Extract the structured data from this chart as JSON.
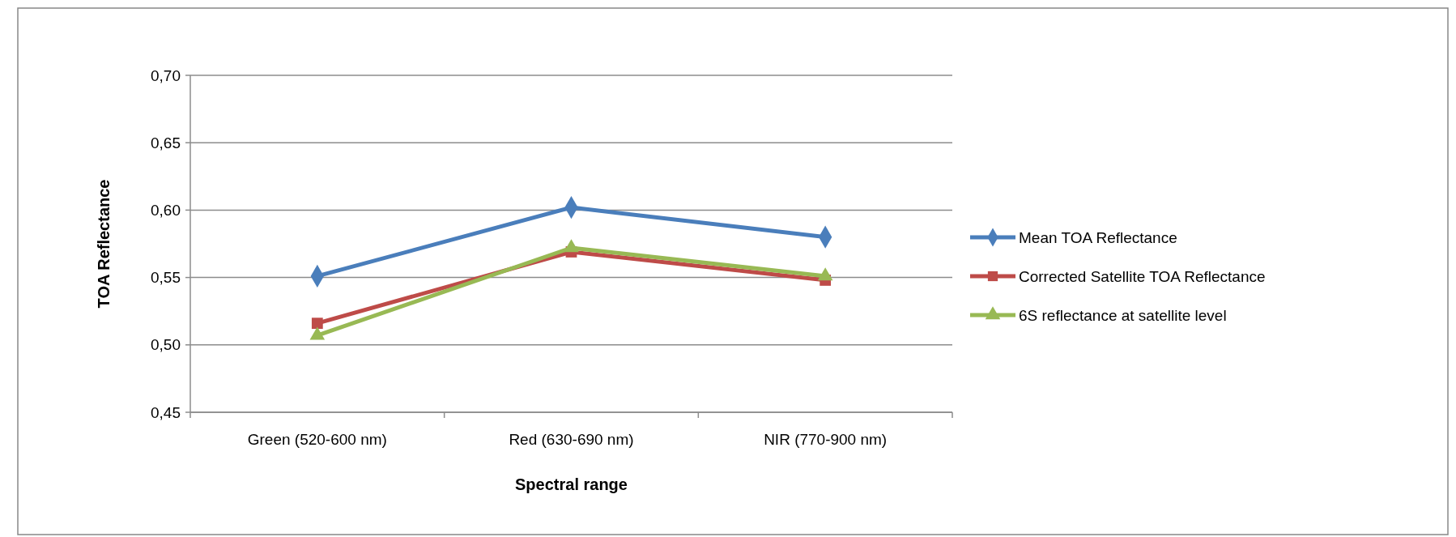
{
  "chart_data": {
    "type": "line",
    "xlabel": "Spectral range",
    "ylabel": "TOA Reflectance",
    "categories": [
      "Green (520-600 nm)",
      "Red (630-690 nm)",
      "NIR (770-900 nm)"
    ],
    "series": [
      {
        "name": "Mean TOA Reflectance",
        "color": "#4a7ebb",
        "marker": "diamond",
        "values": [
          0.551,
          0.602,
          0.58
        ]
      },
      {
        "name": "Corrected Satellite TOA Reflectance",
        "color": "#be4b48",
        "marker": "square",
        "values": [
          0.516,
          0.569,
          0.548
        ]
      },
      {
        "name": "6S reflectance at satellite level",
        "color": "#98b954",
        "marker": "triangle",
        "values": [
          0.507,
          0.572,
          0.551
        ]
      }
    ],
    "ylim": [
      0.45,
      0.7
    ],
    "yticks": [
      {
        "value": 0.45,
        "label": "0,45"
      },
      {
        "value": 0.5,
        "label": "0,50"
      },
      {
        "value": 0.55,
        "label": "0,55"
      },
      {
        "value": 0.6,
        "label": "0,60"
      },
      {
        "value": 0.65,
        "label": "0,65"
      },
      {
        "value": 0.7,
        "label": "0,70"
      }
    ],
    "grid": "y",
    "legend": "right",
    "line_style": "solid"
  }
}
